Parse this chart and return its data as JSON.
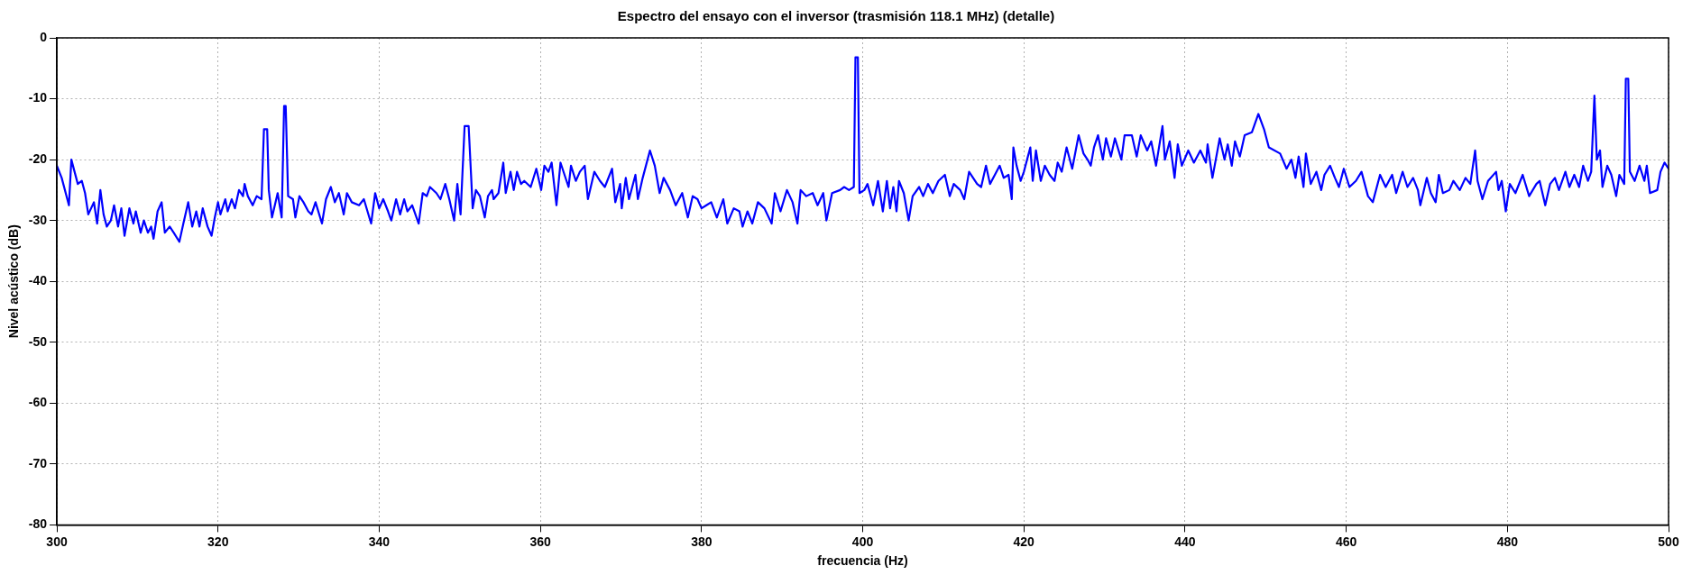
{
  "chart_data": {
    "type": "line",
    "title": "Espectro del ensayo con el inversor (trasmisión 118.1 MHz) (detalle)",
    "xlabel": "frecuencia (Hz)",
    "ylabel": "Nivel acústico (dB)",
    "xlim": [
      300,
      500
    ],
    "ylim": [
      -80,
      0
    ],
    "xticks": [
      300,
      320,
      340,
      360,
      380,
      400,
      420,
      440,
      460,
      480,
      500
    ],
    "yticks": [
      -80,
      -70,
      -60,
      -50,
      -40,
      -30,
      -20,
      -10,
      0
    ],
    "grid": true,
    "legend": false,
    "marker": "none",
    "line_style": "solid",
    "x": [
      300.0,
      300.6,
      301.5,
      301.8,
      302.6,
      303.1,
      303.5,
      303.9,
      304.6,
      305.0,
      305.4,
      305.8,
      306.2,
      306.7,
      307.1,
      307.6,
      308.0,
      308.4,
      309.0,
      309.5,
      309.8,
      310.4,
      310.8,
      311.3,
      311.7,
      312.0,
      312.5,
      313.0,
      313.4,
      314.0,
      314.5,
      315.2,
      315.7,
      316.3,
      316.8,
      317.3,
      317.7,
      318.1,
      318.7,
      319.2,
      319.6,
      320.0,
      320.3,
      320.9,
      321.2,
      321.7,
      322.1,
      322.6,
      323.1,
      323.3,
      323.7,
      324.3,
      324.8,
      325.4,
      325.7,
      326.1,
      326.3,
      326.7,
      327.4,
      327.9,
      328.2,
      328.4,
      328.7,
      329.3,
      329.6,
      330.1,
      330.6,
      331.2,
      331.6,
      332.1,
      332.9,
      333.4,
      334.0,
      334.5,
      335.0,
      335.6,
      336.0,
      336.6,
      337.5,
      338.1,
      339.0,
      339.5,
      340.0,
      340.5,
      341.1,
      341.5,
      342.1,
      342.6,
      343.1,
      343.5,
      344.1,
      344.9,
      345.4,
      345.9,
      346.3,
      347.1,
      347.6,
      348.2,
      348.7,
      349.3,
      349.7,
      350.1,
      350.6,
      351.1,
      351.4,
      351.6,
      352.0,
      352.5,
      353.1,
      353.5,
      354.0,
      354.2,
      354.8,
      355.4,
      355.7,
      356.3,
      356.7,
      357.1,
      357.6,
      358.0,
      358.8,
      359.5,
      360.1,
      360.5,
      361.0,
      361.4,
      362.0,
      362.5,
      363.5,
      363.8,
      364.4,
      364.9,
      365.5,
      365.9,
      366.7,
      367.4,
      368.0,
      368.9,
      369.3,
      369.9,
      370.1,
      370.6,
      371.0,
      371.8,
      372.1,
      372.7,
      373.1,
      373.6,
      374.2,
      374.8,
      375.3,
      376.1,
      376.8,
      377.6,
      378.3,
      378.9,
      379.5,
      380.0,
      380.6,
      381.2,
      381.9,
      382.7,
      383.2,
      384.0,
      384.7,
      385.1,
      385.7,
      386.3,
      387.0,
      387.8,
      388.7,
      389.1,
      389.8,
      390.6,
      391.3,
      391.9,
      392.3,
      393.0,
      393.8,
      394.4,
      395.1,
      395.5,
      396.2,
      397.2,
      397.7,
      398.3,
      398.9,
      399.1,
      399.4,
      399.6,
      400.2,
      400.6,
      401.3,
      401.9,
      402.5,
      403.0,
      403.4,
      403.8,
      404.2,
      404.5,
      405.1,
      405.7,
      406.2,
      407.0,
      407.5,
      408.1,
      408.7,
      409.4,
      410.2,
      410.8,
      411.3,
      412.1,
      412.6,
      413.2,
      414.2,
      414.7,
      415.3,
      415.8,
      416.4,
      417.0,
      417.5,
      418.1,
      418.5,
      418.7,
      419.1,
      419.6,
      420.0,
      420.8,
      421.1,
      421.5,
      422.1,
      422.6,
      423.2,
      423.8,
      424.2,
      424.7,
      425.3,
      426.0,
      426.8,
      427.4,
      427.9,
      428.3,
      428.7,
      429.2,
      429.8,
      430.2,
      430.8,
      431.3,
      432.1,
      432.5,
      433.4,
      434.0,
      434.5,
      435.3,
      435.8,
      436.4,
      437.2,
      437.5,
      438.1,
      438.7,
      439.1,
      439.6,
      440.4,
      441.1,
      441.9,
      442.6,
      442.8,
      443.4,
      444.3,
      444.9,
      445.3,
      445.8,
      446.2,
      446.8,
      447.4,
      448.3,
      449.1,
      449.8,
      450.4,
      451.8,
      452.6,
      453.2,
      453.7,
      454.1,
      454.7,
      455.0,
      455.6,
      456.3,
      456.9,
      457.3,
      458.0,
      458.6,
      459.1,
      459.7,
      460.4,
      461.2,
      461.9,
      462.7,
      463.3,
      464.2,
      464.9,
      465.7,
      466.2,
      467.0,
      467.6,
      468.3,
      468.9,
      469.2,
      470.0,
      470.5,
      471.1,
      471.5,
      472.0,
      472.8,
      473.3,
      474.1,
      474.8,
      475.4,
      476.0,
      476.3,
      476.9,
      477.6,
      478.6,
      478.9,
      479.3,
      479.8,
      480.3,
      481.0,
      481.9,
      482.7,
      483.6,
      484.0,
      484.7,
      485.3,
      485.9,
      486.4,
      487.2,
      487.7,
      488.3,
      488.9,
      489.4,
      490.0,
      490.4,
      490.8,
      491.1,
      491.5,
      491.8,
      492.4,
      492.9,
      493.5,
      493.9,
      494.5,
      494.7,
      495.0,
      495.2,
      495.8,
      496.4,
      497.0,
      497.3,
      497.7,
      498.6,
      499.0,
      499.5,
      500.0
    ],
    "series": [
      {
        "color": "#0000ff",
        "values": [
          -21,
          -23,
          -27.5,
          -20,
          -24,
          -23.5,
          -25.5,
          -29,
          -27,
          -30.5,
          -25,
          -29,
          -31,
          -30,
          -27.5,
          -31,
          -28,
          -32.5,
          -28,
          -30.5,
          -28.5,
          -32,
          -30,
          -32,
          -31,
          -33,
          -28.5,
          -27,
          -32,
          -31,
          -32,
          -33.5,
          -30.5,
          -27,
          -31,
          -28.5,
          -31,
          -28,
          -31,
          -32.5,
          -29.5,
          -27,
          -29,
          -26.5,
          -28.5,
          -26.5,
          -28,
          -25,
          -26,
          -24,
          -26,
          -27.5,
          -26,
          -26.5,
          -15,
          -15,
          -25,
          -29.5,
          -25.5,
          -29.5,
          -11.2,
          -11.2,
          -26,
          -26.5,
          -29.5,
          -26,
          -27,
          -28.5,
          -29,
          -27,
          -30.5,
          -26.5,
          -24.5,
          -27,
          -25.5,
          -29,
          -25.5,
          -27,
          -27.5,
          -26.5,
          -30.5,
          -25.5,
          -28,
          -26.5,
          -28.5,
          -30,
          -26.5,
          -29,
          -26.5,
          -28.5,
          -27.5,
          -30.5,
          -25.5,
          -26,
          -24.5,
          -25.5,
          -26.5,
          -24,
          -26.5,
          -30,
          -24,
          -29,
          -14.5,
          -14.5,
          -22.5,
          -28,
          -25,
          -26,
          -29.5,
          -26,
          -25,
          -26.5,
          -25.5,
          -20.5,
          -25.5,
          -22,
          -25,
          -22,
          -24,
          -23.5,
          -24.5,
          -21.5,
          -25,
          -21,
          -22,
          -20.5,
          -27.5,
          -20.5,
          -24.5,
          -21,
          -23.5,
          -22,
          -21,
          -26.5,
          -22,
          -23.5,
          -24.5,
          -21.5,
          -27,
          -24,
          -28,
          -23,
          -26.5,
          -22.5,
          -26.5,
          -23,
          -21,
          -18.5,
          -21,
          -25.5,
          -23,
          -25,
          -27.5,
          -25.5,
          -29.5,
          -26,
          -26.5,
          -28,
          -27.5,
          -27,
          -29.5,
          -26.5,
          -30.5,
          -28,
          -28.5,
          -31,
          -28.5,
          -30.5,
          -27,
          -28,
          -30.5,
          -25.5,
          -28.5,
          -25,
          -27,
          -30.5,
          -25,
          -26,
          -25.5,
          -27.5,
          -25.5,
          -30,
          -25.5,
          -25,
          -24.5,
          -25,
          -24.5,
          -3.2,
          -3.2,
          -25.5,
          -25,
          -24,
          -27.5,
          -23.5,
          -28.5,
          -23.5,
          -28,
          -24.5,
          -28.5,
          -23.5,
          -25.5,
          -30,
          -26,
          -24.5,
          -26,
          -24,
          -25.5,
          -23.5,
          -22.5,
          -26,
          -24,
          -25,
          -26.5,
          -22,
          -24,
          -24.5,
          -21,
          -24,
          -22.5,
          -21,
          -23,
          -22.5,
          -26.5,
          -18,
          -21,
          -23.5,
          -22,
          -18,
          -23.5,
          -18.5,
          -23.5,
          -21,
          -22.5,
          -23.5,
          -20.5,
          -22,
          -18,
          -21.5,
          -16,
          -19,
          -20,
          -21,
          -18,
          -16,
          -20,
          -16.5,
          -19.5,
          -16.5,
          -20,
          -16,
          -16,
          -19.5,
          -16,
          -18.5,
          -17,
          -21,
          -14.5,
          -20,
          -17,
          -23,
          -17.5,
          -21,
          -18.5,
          -20.5,
          -18.5,
          -20.5,
          -17.5,
          -23,
          -16.5,
          -20,
          -17.5,
          -21,
          -17,
          -19.5,
          -16,
          -15.5,
          -12.5,
          -15,
          -18,
          -19,
          -21.5,
          -20,
          -23,
          -19.5,
          -24.5,
          -19,
          -24,
          -22,
          -25,
          -22.5,
          -21,
          -23,
          -24.5,
          -21.5,
          -24.5,
          -23.5,
          -22,
          -26,
          -27,
          -22.5,
          -24.5,
          -22.5,
          -25.5,
          -22,
          -24.5,
          -23,
          -25,
          -27.5,
          -23,
          -25.5,
          -27,
          -22.5,
          -25.5,
          -25,
          -23.5,
          -25,
          -23,
          -24,
          -18.5,
          -23.5,
          -26.5,
          -23.5,
          -22,
          -25,
          -23.5,
          -28.5,
          -24,
          -25.5,
          -22.5,
          -26,
          -24,
          -23.5,
          -27.5,
          -24,
          -23,
          -25,
          -22,
          -24.5,
          -22.5,
          -24.5,
          -21,
          -23.5,
          -22,
          -9.5,
          -20,
          -18.5,
          -24.5,
          -21,
          -22.5,
          -26,
          -22.5,
          -24,
          -6.7,
          -6.7,
          -22,
          -23.5,
          -21,
          -23.5,
          -21,
          -25.5,
          -25,
          -22,
          -20.5,
          -21.5
        ]
      }
    ]
  }
}
